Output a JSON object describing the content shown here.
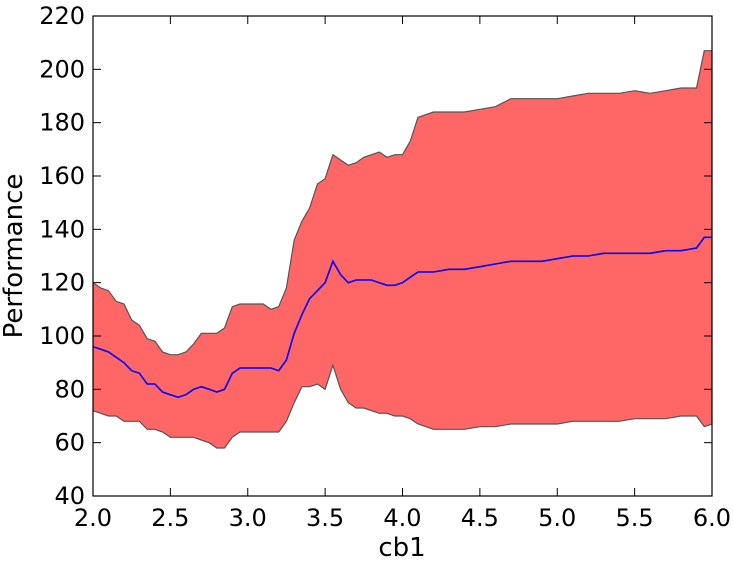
{
  "chart_data": {
    "type": "area",
    "title": "",
    "xlabel": "cb1",
    "ylabel": "Performance",
    "xlim": [
      2.0,
      6.0
    ],
    "ylim": [
      40,
      220
    ],
    "xticks": [
      {
        "value": 2.0,
        "label": "2.0"
      },
      {
        "value": 2.5,
        "label": "2.5"
      },
      {
        "value": 3.0,
        "label": "3.0"
      },
      {
        "value": 3.5,
        "label": "3.5"
      },
      {
        "value": 4.0,
        "label": "4.0"
      },
      {
        "value": 4.5,
        "label": "4.5"
      },
      {
        "value": 5.0,
        "label": "5.0"
      },
      {
        "value": 5.5,
        "label": "5.5"
      },
      {
        "value": 6.0,
        "label": "6.0"
      }
    ],
    "yticks": [
      {
        "value": 40,
        "label": "40"
      },
      {
        "value": 60,
        "label": "60"
      },
      {
        "value": 80,
        "label": "80"
      },
      {
        "value": 100,
        "label": "100"
      },
      {
        "value": 120,
        "label": "120"
      },
      {
        "value": 140,
        "label": "140"
      },
      {
        "value": 160,
        "label": "160"
      },
      {
        "value": 180,
        "label": "180"
      },
      {
        "value": 200,
        "label": "200"
      },
      {
        "value": 220,
        "label": "220"
      }
    ],
    "grid": false,
    "colors": {
      "band_fill": "#ff6666",
      "band_edge": "#555555",
      "mean_line": "#0000ff"
    },
    "x": [
      2.0,
      2.05,
      2.1,
      2.15,
      2.2,
      2.25,
      2.3,
      2.35,
      2.4,
      2.45,
      2.5,
      2.55,
      2.6,
      2.65,
      2.7,
      2.75,
      2.8,
      2.85,
      2.9,
      2.95,
      3.0,
      3.05,
      3.1,
      3.15,
      3.2,
      3.25,
      3.3,
      3.35,
      3.4,
      3.45,
      3.5,
      3.55,
      3.6,
      3.65,
      3.7,
      3.75,
      3.8,
      3.85,
      3.9,
      3.95,
      4.0,
      4.05,
      4.1,
      4.2,
      4.3,
      4.4,
      4.5,
      4.6,
      4.7,
      4.8,
      4.9,
      5.0,
      5.1,
      5.2,
      5.3,
      5.4,
      5.5,
      5.6,
      5.7,
      5.8,
      5.9,
      5.95,
      6.0
    ],
    "upper": [
      120,
      118,
      117,
      113,
      112,
      106,
      104,
      99,
      98,
      94,
      93,
      93,
      94,
      97,
      101,
      101,
      101,
      103,
      111,
      112,
      112,
      112,
      112,
      110,
      111,
      118,
      136,
      143,
      148,
      157,
      159,
      168,
      166,
      164,
      165,
      167,
      168,
      169,
      167,
      168,
      168,
      173,
      182,
      184,
      184,
      184,
      185,
      186,
      189,
      189,
      189,
      189,
      190,
      191,
      191,
      191,
      192,
      191,
      192,
      193,
      193,
      207,
      207
    ],
    "mean": [
      96,
      95,
      94,
      92,
      90,
      87,
      86,
      82,
      82,
      79,
      78,
      77,
      78,
      80,
      81,
      80,
      79,
      80,
      86,
      88,
      88,
      88,
      88,
      88,
      87,
      91,
      101,
      108,
      114,
      117,
      120,
      128,
      123,
      120,
      121,
      121,
      121,
      120,
      119,
      119,
      120,
      122,
      124,
      124,
      125,
      125,
      126,
      127,
      128,
      128,
      128,
      129,
      130,
      130,
      131,
      131,
      131,
      131,
      132,
      132,
      133,
      137,
      137
    ],
    "lower": [
      72,
      71,
      70,
      70,
      68,
      68,
      68,
      65,
      65,
      64,
      62,
      62,
      62,
      62,
      61,
      60,
      58,
      58,
      62,
      64,
      64,
      64,
      64,
      64,
      64,
      68,
      75,
      81,
      81,
      82,
      80,
      89,
      80,
      75,
      73,
      73,
      72,
      71,
      71,
      70,
      70,
      69,
      67,
      65,
      65,
      65,
      66,
      66,
      67,
      67,
      67,
      67,
      68,
      68,
      68,
      68,
      69,
      69,
      69,
      70,
      70,
      66,
      67
    ]
  }
}
